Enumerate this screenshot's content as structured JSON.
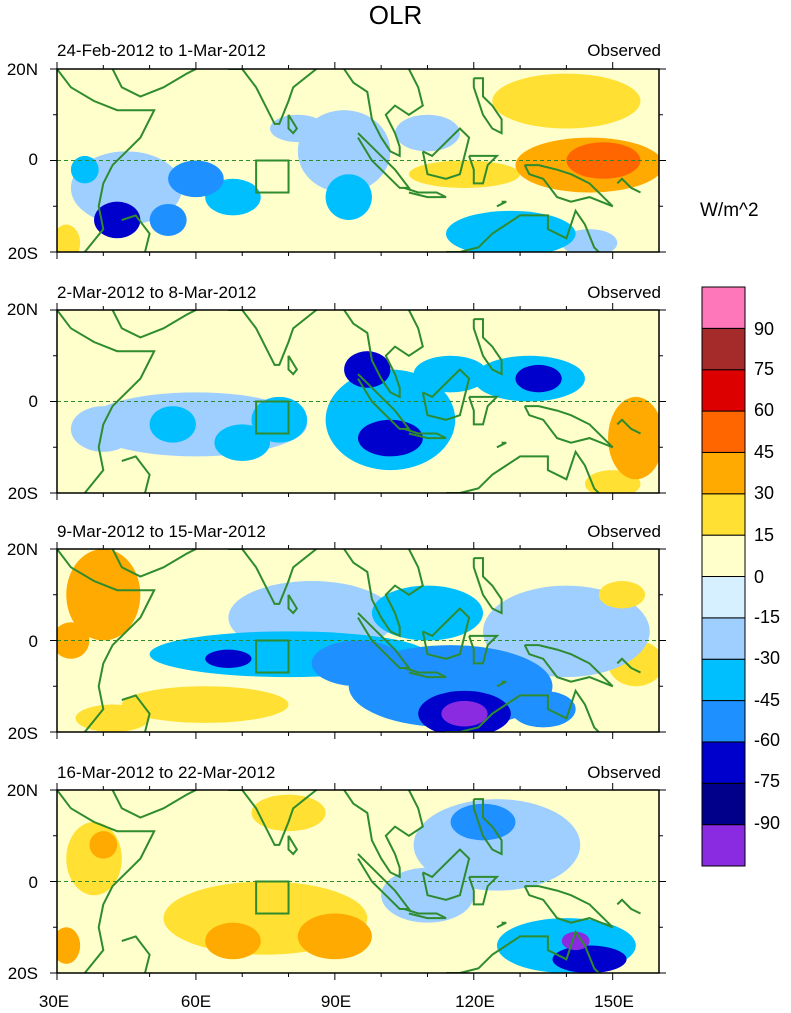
{
  "title": "OLR",
  "units": "W/m^2",
  "colors": {
    "axis": "#000000",
    "coast": "#2e8b2e",
    "equator": "#2e8b2e",
    "levels": [
      "#8a2be2",
      "#00008b",
      "#0000cd",
      "#1e90ff",
      "#00bfff",
      "#9fcfff",
      "#d6f0ff",
      "#ffffcc",
      "#ffe033",
      "#ffaa00",
      "#ff6600",
      "#dd0000",
      "#a52a2a",
      "#ff77bb"
    ]
  },
  "chart_data": {
    "type": "heatmap",
    "variable": "Outgoing Longwave Radiation anomaly",
    "xlim": [
      30,
      160
    ],
    "ylim": [
      -20,
      20
    ],
    "xticks": [
      30,
      60,
      90,
      120,
      150
    ],
    "xtick_labels": [
      "30E",
      "60E",
      "90E",
      "120E",
      "150E"
    ],
    "yticks": [
      20,
      0,
      -20
    ],
    "ytick_labels": [
      "20N",
      "0",
      "20S"
    ],
    "colorbar": {
      "levels": [
        -90,
        -75,
        -60,
        -45,
        -30,
        -15,
        0,
        15,
        30,
        45,
        60,
        75,
        90
      ],
      "labels": [
        "-90",
        "-75",
        "-60",
        "-45",
        "-30",
        "-15",
        "0",
        "15",
        "30",
        "45",
        "60",
        "75",
        "90"
      ]
    },
    "box_region": {
      "lon": [
        73,
        80
      ],
      "lat": [
        -7,
        0
      ]
    },
    "panels": [
      {
        "date_label": "24-Feb-2012 to 1-Mar-2012",
        "source_label": "Observed",
        "blobs": [
          {
            "lon": 45,
            "lat": -6,
            "rx": 12,
            "ry": 8,
            "v": -30
          },
          {
            "lon": 43,
            "lat": -13,
            "rx": 5,
            "ry": 4,
            "v": -65
          },
          {
            "lon": 54,
            "lat": -13,
            "rx": 4,
            "ry": 3.5,
            "v": -55
          },
          {
            "lon": 60,
            "lat": -4,
            "rx": 6,
            "ry": 4,
            "v": -50
          },
          {
            "lon": 68,
            "lat": -8,
            "rx": 6,
            "ry": 4,
            "v": -35
          },
          {
            "lon": 36,
            "lat": -2,
            "rx": 3,
            "ry": 3,
            "v": -45
          },
          {
            "lon": 92,
            "lat": 2,
            "rx": 10,
            "ry": 9,
            "v": -30
          },
          {
            "lon": 93,
            "lat": -8,
            "rx": 5,
            "ry": 5,
            "v": -45
          },
          {
            "lon": 82,
            "lat": 7,
            "rx": 6,
            "ry": 3,
            "v": -25
          },
          {
            "lon": 110,
            "lat": 6,
            "rx": 7,
            "ry": 4,
            "v": -20
          },
          {
            "lon": 128,
            "lat": -16,
            "rx": 14,
            "ry": 5,
            "v": -40
          },
          {
            "lon": 145,
            "lat": -18,
            "rx": 6,
            "ry": 3,
            "v": -30
          },
          {
            "lon": 145,
            "lat": -1,
            "rx": 16,
            "ry": 6,
            "v": 35
          },
          {
            "lon": 148,
            "lat": 0,
            "rx": 8,
            "ry": 4,
            "v": 50
          },
          {
            "lon": 140,
            "lat": 13,
            "rx": 16,
            "ry": 6,
            "v": 20
          },
          {
            "lon": 118,
            "lat": -3,
            "rx": 12,
            "ry": 3,
            "v": 20
          },
          {
            "lon": 32,
            "lat": -18,
            "rx": 3,
            "ry": 4,
            "v": 25
          },
          {
            "lon": 102,
            "lat": 16,
            "rx": 8,
            "ry": 4,
            "v": 10
          }
        ]
      },
      {
        "date_label": "2-Mar-2012 to 8-Mar-2012",
        "source_label": "Observed",
        "blobs": [
          {
            "lon": 60,
            "lat": -5,
            "rx": 24,
            "ry": 7,
            "v": -30
          },
          {
            "lon": 55,
            "lat": -5,
            "rx": 5,
            "ry": 4,
            "v": -45
          },
          {
            "lon": 70,
            "lat": -9,
            "rx": 6,
            "ry": 4,
            "v": -40
          },
          {
            "lon": 78,
            "lat": -4,
            "rx": 6,
            "ry": 5,
            "v": -35
          },
          {
            "lon": 102,
            "lat": -4,
            "rx": 14,
            "ry": 11,
            "v": -35
          },
          {
            "lon": 97,
            "lat": 7,
            "rx": 5,
            "ry": 4,
            "v": -70
          },
          {
            "lon": 102,
            "lat": -8,
            "rx": 7,
            "ry": 4,
            "v": -70
          },
          {
            "lon": 115,
            "lat": 6,
            "rx": 8,
            "ry": 4,
            "v": -40
          },
          {
            "lon": 132,
            "lat": 5,
            "rx": 12,
            "ry": 5,
            "v": -40
          },
          {
            "lon": 134,
            "lat": 5,
            "rx": 5,
            "ry": 3,
            "v": -70
          },
          {
            "lon": 40,
            "lat": -6,
            "rx": 7,
            "ry": 5,
            "v": -30
          },
          {
            "lon": 155,
            "lat": -8,
            "rx": 6,
            "ry": 9,
            "v": 35
          },
          {
            "lon": 150,
            "lat": -18,
            "rx": 6,
            "ry": 3,
            "v": 20
          }
        ]
      },
      {
        "date_label": "9-Mar-2012 to 15-Mar-2012",
        "source_label": "Observed",
        "blobs": [
          {
            "lon": 80,
            "lat": -3,
            "rx": 30,
            "ry": 5,
            "v": -40
          },
          {
            "lon": 67,
            "lat": -4,
            "rx": 5,
            "ry": 2,
            "v": -70
          },
          {
            "lon": 95,
            "lat": -5,
            "rx": 10,
            "ry": 5,
            "v": -50
          },
          {
            "lon": 85,
            "lat": 5,
            "rx": 18,
            "ry": 8,
            "v": -25
          },
          {
            "lon": 110,
            "lat": 6,
            "rx": 12,
            "ry": 6,
            "v": -35
          },
          {
            "lon": 115,
            "lat": -10,
            "rx": 22,
            "ry": 9,
            "v": -50
          },
          {
            "lon": 118,
            "lat": -16,
            "rx": 10,
            "ry": 5,
            "v": -75
          },
          {
            "lon": 118,
            "lat": -16,
            "rx": 5,
            "ry": 2.8,
            "v": -92
          },
          {
            "lon": 135,
            "lat": -15,
            "rx": 7,
            "ry": 4,
            "v": -50
          },
          {
            "lon": 140,
            "lat": 2,
            "rx": 18,
            "ry": 10,
            "v": -20
          },
          {
            "lon": 40,
            "lat": 10,
            "rx": 8,
            "ry": 10,
            "v": 30
          },
          {
            "lon": 33,
            "lat": 0,
            "rx": 4,
            "ry": 4,
            "v": 40
          },
          {
            "lon": 62,
            "lat": -14,
            "rx": 18,
            "ry": 4,
            "v": 20
          },
          {
            "lon": 42,
            "lat": -17,
            "rx": 8,
            "ry": 3,
            "v": 15
          },
          {
            "lon": 155,
            "lat": -5,
            "rx": 6,
            "ry": 5,
            "v": 15
          },
          {
            "lon": 152,
            "lat": 10,
            "rx": 5,
            "ry": 3,
            "v": 20
          }
        ]
      },
      {
        "date_label": "16-Mar-2012 to 22-Mar-2012",
        "source_label": "Observed",
        "blobs": [
          {
            "lon": 75,
            "lat": -8,
            "rx": 22,
            "ry": 8,
            "v": 25
          },
          {
            "lon": 68,
            "lat": -13,
            "rx": 6,
            "ry": 4,
            "v": 40
          },
          {
            "lon": 90,
            "lat": -12,
            "rx": 8,
            "ry": 5,
            "v": 30
          },
          {
            "lon": 80,
            "lat": 15,
            "rx": 8,
            "ry": 4,
            "v": 15
          },
          {
            "lon": 38,
            "lat": 5,
            "rx": 6,
            "ry": 8,
            "v": 25
          },
          {
            "lon": 40,
            "lat": 8,
            "rx": 3,
            "ry": 3,
            "v": 40
          },
          {
            "lon": 125,
            "lat": 8,
            "rx": 18,
            "ry": 10,
            "v": -30
          },
          {
            "lon": 122,
            "lat": 13,
            "rx": 7,
            "ry": 4,
            "v": -60
          },
          {
            "lon": 140,
            "lat": -14,
            "rx": 15,
            "ry": 6,
            "v": -45
          },
          {
            "lon": 145,
            "lat": -17,
            "rx": 8,
            "ry": 3,
            "v": -75
          },
          {
            "lon": 142,
            "lat": -13,
            "rx": 3,
            "ry": 2,
            "v": -92
          },
          {
            "lon": 110,
            "lat": -3,
            "rx": 10,
            "ry": 6,
            "v": -25
          },
          {
            "lon": 32,
            "lat": -14,
            "rx": 3,
            "ry": 4,
            "v": 30
          }
        ]
      }
    ]
  }
}
